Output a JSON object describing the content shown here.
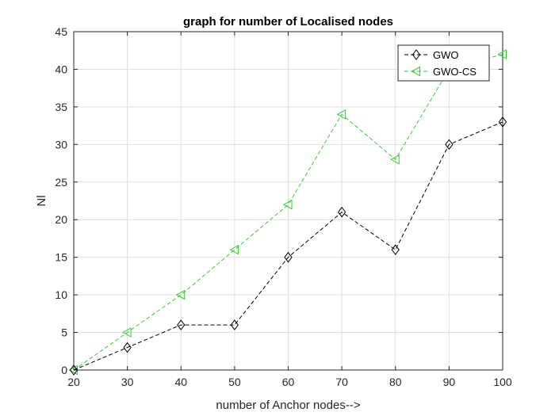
{
  "chart_data": {
    "type": "line",
    "title": "graph for number of Localised nodes",
    "xlabel": "number of Anchor nodes-->",
    "ylabel": "Nl",
    "x": [
      20,
      30,
      40,
      50,
      60,
      70,
      80,
      90,
      100
    ],
    "xlim": [
      20,
      100
    ],
    "ylim": [
      0,
      45
    ],
    "xticks": [
      20,
      30,
      40,
      50,
      60,
      70,
      80,
      90,
      100
    ],
    "yticks": [
      0,
      5,
      10,
      15,
      20,
      25,
      30,
      35,
      40,
      45
    ],
    "grid": true,
    "legend_position": "top-right",
    "series": [
      {
        "name": "GWO",
        "values": [
          0,
          3,
          6,
          6,
          15,
          21,
          16,
          30,
          33
        ],
        "color": "#000000",
        "marker": "diamond",
        "line_style": "dashed"
      },
      {
        "name": "GWO-CS",
        "values": [
          0,
          5,
          10,
          16,
          22,
          34,
          28,
          40,
          42
        ],
        "color": "#33cc33",
        "marker": "triangle-left",
        "line_style": "dashed"
      }
    ]
  }
}
